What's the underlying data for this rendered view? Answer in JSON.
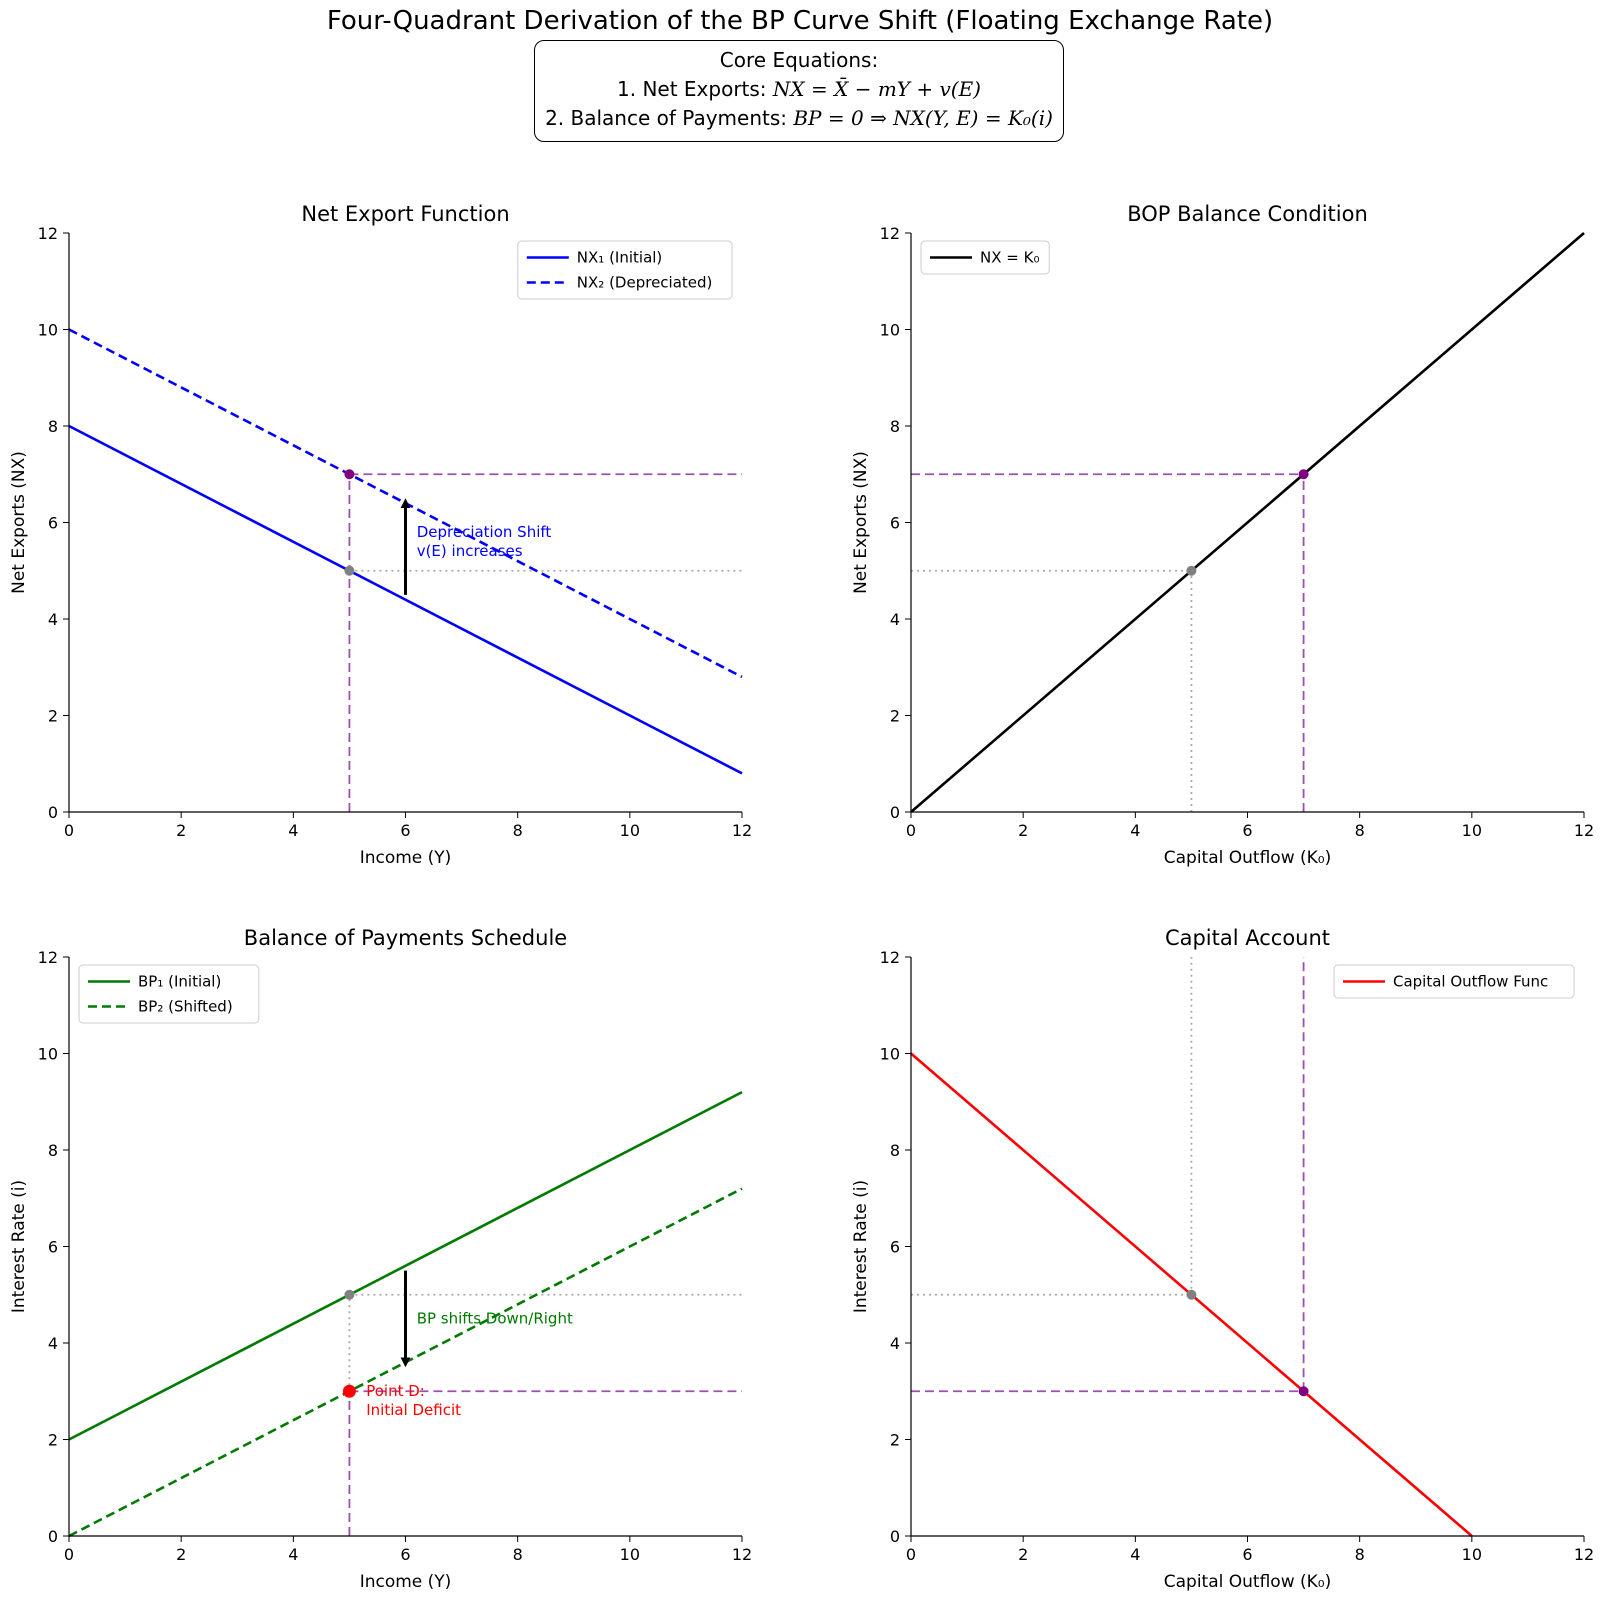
{
  "title": "Four-Quadrant Derivation of the BP Curve Shift (Floating Exchange Rate)",
  "equations": {
    "heading": "Core Equations:",
    "line1_prefix": "1. Net Exports: ",
    "line1_math": "NX = X̄ − mY + v(E)",
    "line2_prefix": "2. Balance of Payments: ",
    "line2_math": "BP = 0 ⇒ NX(Y, E) = K₀(i)"
  },
  "colors": {
    "nx": "#0000ff",
    "bop": "#000000",
    "bp": "#007a00",
    "capital": "#ff0000",
    "guide": "#9b4fb5",
    "gray": "#808080",
    "purple_point": "#800080",
    "red_point": "#ff0000"
  },
  "chart_data": [
    {
      "id": "tl",
      "type": "line",
      "title": "Net Export Function",
      "xlabel": "Income (Y)",
      "ylabel": "Net Exports (NX)",
      "xlim": [
        0,
        12
      ],
      "ylim": [
        0,
        12
      ],
      "xticks": [
        0,
        2,
        4,
        6,
        8,
        10,
        12
      ],
      "yticks": [
        0,
        2,
        4,
        6,
        8,
        10,
        12
      ],
      "legend_position": "upper-right",
      "series": [
        {
          "name": "NX₁ (Initial)",
          "style": "solid",
          "color": "#0000ff",
          "points": [
            [
              0,
              8
            ],
            [
              12,
              0.8
            ]
          ]
        },
        {
          "name": "NX₂ (Depreciated)",
          "style": "dashed",
          "color": "#0000ff",
          "points": [
            [
              0,
              10
            ],
            [
              12,
              2.8
            ]
          ]
        }
      ],
      "guides": [
        {
          "style": "dashed",
          "color": "#9b4fb5",
          "points": [
            [
              5,
              7
            ],
            [
              12,
              7
            ]
          ]
        },
        {
          "style": "dashed",
          "color": "#9b4fb5",
          "points": [
            [
              5,
              0
            ],
            [
              5,
              7
            ]
          ]
        },
        {
          "style": "dotted",
          "color": "#aaaaaa",
          "points": [
            [
              5,
              5
            ],
            [
              12,
              5
            ]
          ]
        }
      ],
      "markers": [
        {
          "x": 5,
          "y": 7,
          "color": "#800080",
          "r": 5
        },
        {
          "x": 5,
          "y": 5,
          "color": "#808080",
          "r": 5
        }
      ],
      "arrows": [
        {
          "from": [
            6,
            4.5
          ],
          "to": [
            6,
            6.4
          ]
        }
      ],
      "annotations": [
        {
          "x": 6.2,
          "y": 5.7,
          "color": "#0000ff",
          "lines": [
            "Depreciation Shift",
            "v(E) increases"
          ]
        }
      ]
    },
    {
      "id": "tr",
      "type": "line",
      "title": "BOP Balance Condition",
      "xlabel": "Capital Outflow (K₀)",
      "ylabel": "Net Exports (NX)",
      "xlim": [
        0,
        12
      ],
      "ylim": [
        0,
        12
      ],
      "xticks": [
        0,
        2,
        4,
        6,
        8,
        10,
        12
      ],
      "yticks": [
        0,
        2,
        4,
        6,
        8,
        10,
        12
      ],
      "legend_position": "upper-left",
      "series": [
        {
          "name": "NX = K₀",
          "style": "solid",
          "color": "#000000",
          "points": [
            [
              0,
              0
            ],
            [
              12,
              12
            ]
          ]
        }
      ],
      "guides": [
        {
          "style": "dashed",
          "color": "#9b4fb5",
          "points": [
            [
              0,
              7
            ],
            [
              7,
              7
            ]
          ]
        },
        {
          "style": "dashed",
          "color": "#9b4fb5",
          "points": [
            [
              7,
              0
            ],
            [
              7,
              7
            ]
          ]
        },
        {
          "style": "dotted",
          "color": "#aaaaaa",
          "points": [
            [
              0,
              5
            ],
            [
              5,
              5
            ]
          ]
        },
        {
          "style": "dotted",
          "color": "#aaaaaa",
          "points": [
            [
              5,
              0
            ],
            [
              5,
              5
            ]
          ]
        }
      ],
      "markers": [
        {
          "x": 7,
          "y": 7,
          "color": "#800080",
          "r": 5
        },
        {
          "x": 5,
          "y": 5,
          "color": "#808080",
          "r": 5
        }
      ],
      "arrows": [],
      "annotations": []
    },
    {
      "id": "bl",
      "type": "line",
      "title": "Balance of Payments Schedule",
      "xlabel": "Income (Y)",
      "ylabel": "Interest Rate (i)",
      "xlim": [
        0,
        12
      ],
      "ylim": [
        0,
        12
      ],
      "xticks": [
        0,
        2,
        4,
        6,
        8,
        10,
        12
      ],
      "yticks": [
        0,
        2,
        4,
        6,
        8,
        10,
        12
      ],
      "legend_position": "upper-left",
      "series": [
        {
          "name": "BP₁ (Initial)",
          "style": "solid",
          "color": "#007a00",
          "points": [
            [
              0,
              2
            ],
            [
              12,
              9.2
            ]
          ]
        },
        {
          "name": "BP₂ (Shifted)",
          "style": "dashed",
          "color": "#007a00",
          "points": [
            [
              0,
              0
            ],
            [
              12,
              7.2
            ]
          ]
        }
      ],
      "guides": [
        {
          "style": "dashed",
          "color": "#9b4fb5",
          "points": [
            [
              5,
              3
            ],
            [
              12,
              3
            ]
          ]
        },
        {
          "style": "dashed",
          "color": "#9b4fb5",
          "points": [
            [
              5,
              0
            ],
            [
              5,
              3
            ]
          ]
        },
        {
          "style": "dotted",
          "color": "#aaaaaa",
          "points": [
            [
              5,
              5
            ],
            [
              12,
              5
            ]
          ]
        },
        {
          "style": "dotted",
          "color": "#aaaaaa",
          "points": [
            [
              5,
              3
            ],
            [
              5,
              5
            ]
          ]
        }
      ],
      "markers": [
        {
          "x": 5,
          "y": 5,
          "color": "#808080",
          "r": 5
        },
        {
          "x": 5,
          "y": 3,
          "color": "#ff0000",
          "r": 6.5
        }
      ],
      "arrows": [
        {
          "from": [
            6,
            5.5
          ],
          "to": [
            6,
            3.6
          ]
        }
      ],
      "annotations": [
        {
          "x": 6.2,
          "y": 4.4,
          "color": "#007a00",
          "lines": [
            "BP shifts Down/Right"
          ]
        },
        {
          "x": 5.3,
          "y": 2.9,
          "color": "#ff0000",
          "lines": [
            "Point D:",
            "Initial Deficit"
          ]
        }
      ]
    },
    {
      "id": "br",
      "type": "line",
      "title": "Capital Account",
      "xlabel": "Capital Outflow (K₀)",
      "ylabel": "Interest Rate (i)",
      "xlim": [
        0,
        12
      ],
      "ylim": [
        0,
        12
      ],
      "xticks": [
        0,
        2,
        4,
        6,
        8,
        10,
        12
      ],
      "yticks": [
        0,
        2,
        4,
        6,
        8,
        10,
        12
      ],
      "legend_position": "upper-right",
      "series": [
        {
          "name": "Capital Outflow Func",
          "style": "solid",
          "color": "#ff0000",
          "points": [
            [
              0,
              10
            ],
            [
              10,
              0
            ]
          ]
        }
      ],
      "guides": [
        {
          "style": "dashed",
          "color": "#9b4fb5",
          "points": [
            [
              7,
              3
            ],
            [
              7,
              12
            ]
          ]
        },
        {
          "style": "dashed",
          "color": "#9b4fb5",
          "points": [
            [
              0,
              3
            ],
            [
              7,
              3
            ]
          ]
        },
        {
          "style": "dotted",
          "color": "#aaaaaa",
          "points": [
            [
              5,
              5
            ],
            [
              5,
              12
            ]
          ]
        },
        {
          "style": "dotted",
          "color": "#aaaaaa",
          "points": [
            [
              0,
              5
            ],
            [
              5,
              5
            ]
          ]
        }
      ],
      "markers": [
        {
          "x": 5,
          "y": 5,
          "color": "#808080",
          "r": 5
        },
        {
          "x": 7,
          "y": 3,
          "color": "#800080",
          "r": 5
        }
      ],
      "arrows": [],
      "annotations": []
    }
  ]
}
